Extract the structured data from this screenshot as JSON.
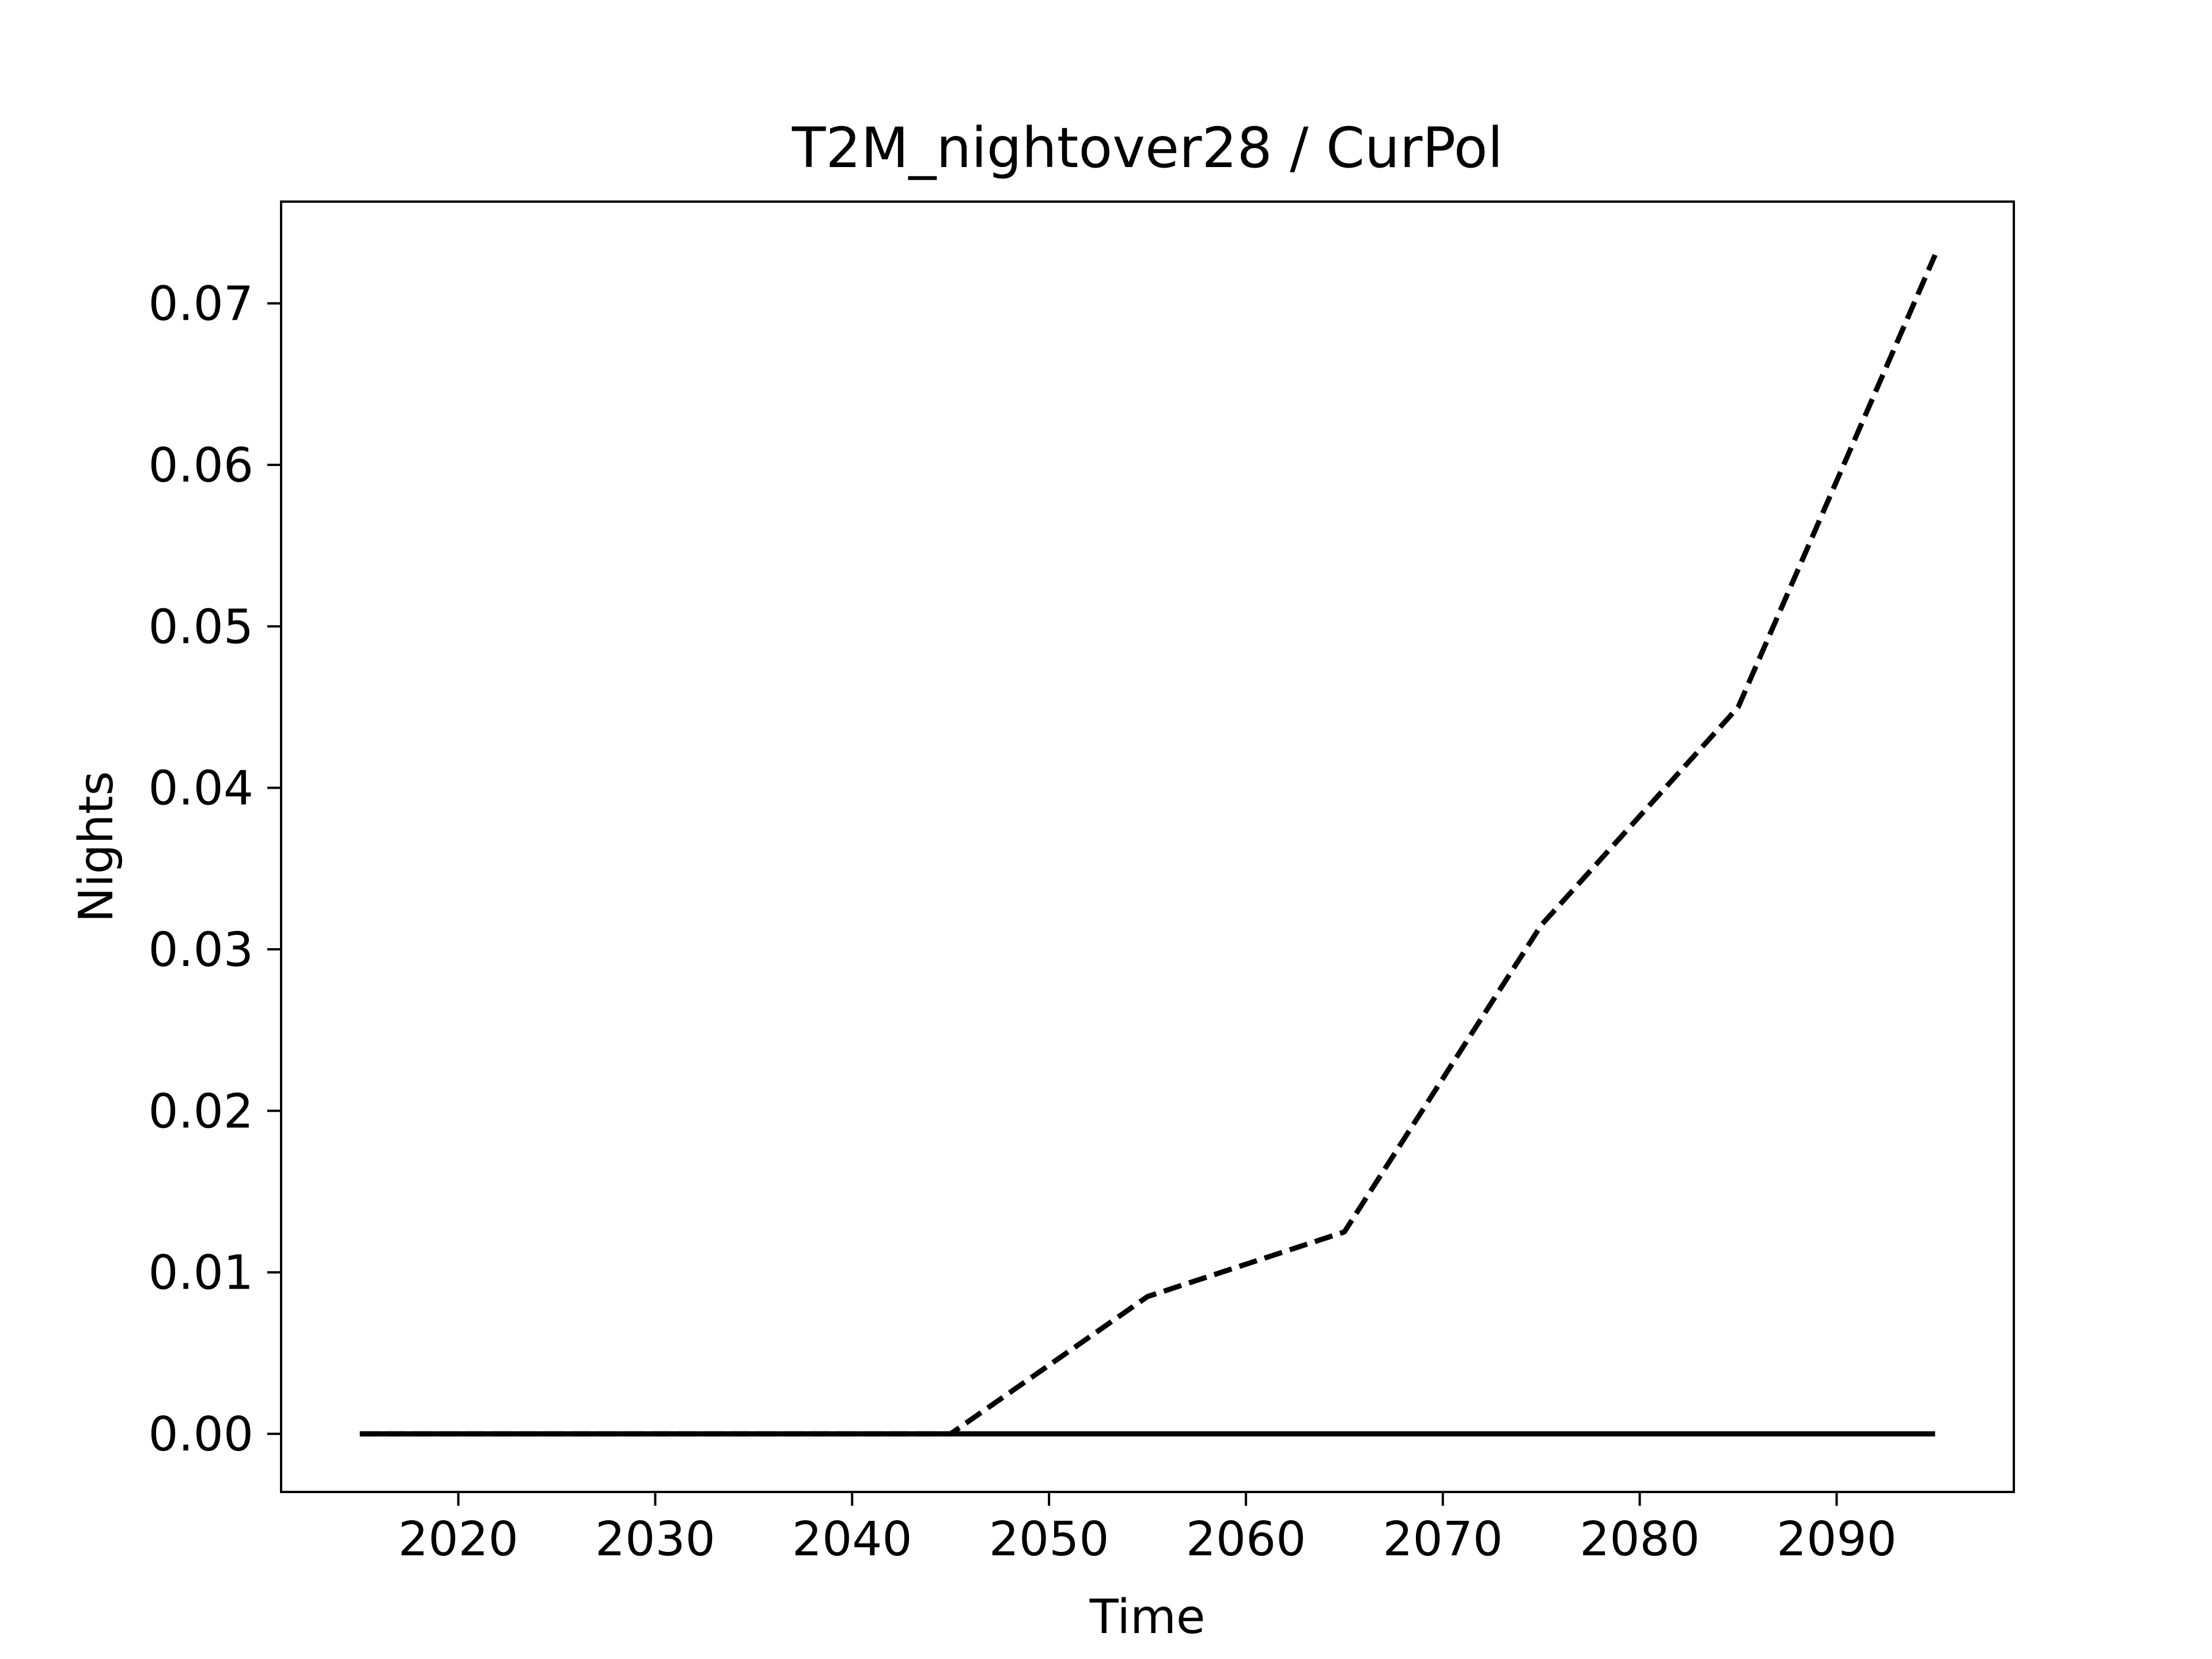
{
  "chart_data": {
    "type": "line",
    "title": "T2M_nightover28 / CurPol",
    "xlabel": "Time",
    "ylabel": "Nights",
    "xlim": [
      2011,
      2099
    ],
    "ylim": [
      -0.0036,
      0.0763
    ],
    "xticks": [
      2020,
      2030,
      2040,
      2050,
      2060,
      2070,
      2080,
      2090
    ],
    "xtick_labels": [
      "2020",
      "2030",
      "2040",
      "2050",
      "2060",
      "2070",
      "2080",
      "2090"
    ],
    "yticks": [
      0.0,
      0.01,
      0.02,
      0.03,
      0.04,
      0.05,
      0.06,
      0.07
    ],
    "ytick_labels": [
      "0.00",
      "0.01",
      "0.02",
      "0.03",
      "0.04",
      "0.05",
      "0.06",
      "0.07"
    ],
    "grid": false,
    "legend": "none",
    "series": [
      {
        "style": "dashed",
        "color": "#000000",
        "x": [
          2015,
          2025,
          2035,
          2045,
          2055,
          2065,
          2075,
          2085,
          2095
        ],
        "y": [
          0.0,
          0.0,
          0.0,
          0.0,
          0.0085,
          0.0125,
          0.0315,
          0.045,
          0.073
        ]
      },
      {
        "style": "solid",
        "color": "#000000",
        "x": [
          2015,
          2025,
          2035,
          2045,
          2055,
          2065,
          2075,
          2085,
          2095
        ],
        "y": [
          0.0,
          0.0,
          0.0,
          0.0,
          0.0,
          0.0,
          0.0,
          0.0,
          0.0
        ]
      }
    ]
  }
}
